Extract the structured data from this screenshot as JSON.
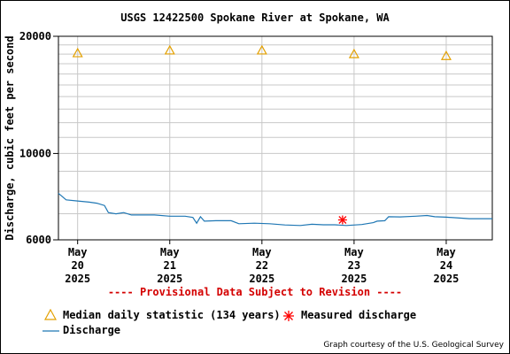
{
  "chart_data": {
    "type": "line",
    "title": "USGS 12422500 Spokane River at Spokane, WA",
    "ylabel": "Discharge, cubic feet per second",
    "xlabel": "",
    "y_scale": "log",
    "ylim": [
      6000,
      20000
    ],
    "y_ticks": [
      {
        "value": 6000,
        "label": "6000"
      },
      {
        "value": 10000,
        "label": "10000"
      },
      {
        "value": 20000,
        "label": "20000"
      }
    ],
    "xlim": [
      "2025-05-19T19:00",
      "2025-05-24T12:00"
    ],
    "x_ticks": [
      {
        "value": "2025-05-20",
        "label": [
          "May",
          "20",
          "2025"
        ]
      },
      {
        "value": "2025-05-21",
        "label": [
          "May",
          "21",
          "2025"
        ]
      },
      {
        "value": "2025-05-22",
        "label": [
          "May",
          "22",
          "2025"
        ]
      },
      {
        "value": "2025-05-23",
        "label": [
          "May",
          "23",
          "2025"
        ]
      },
      {
        "value": "2025-05-24",
        "label": [
          "May",
          "24",
          "2025"
        ]
      }
    ],
    "grid": true,
    "series": [
      {
        "name": "Discharge",
        "color": "#1f77b4",
        "style": "line",
        "points": [
          [
            "2025-05-19T19:00",
            7900
          ],
          [
            "2025-05-19T21:00",
            7600
          ],
          [
            "2025-05-20T00:00",
            7550
          ],
          [
            "2025-05-20T03:00",
            7500
          ],
          [
            "2025-05-20T05:00",
            7450
          ],
          [
            "2025-05-20T07:00",
            7350
          ],
          [
            "2025-05-20T08:00",
            7050
          ],
          [
            "2025-05-20T10:00",
            7000
          ],
          [
            "2025-05-20T12:00",
            7050
          ],
          [
            "2025-05-20T14:00",
            6950
          ],
          [
            "2025-05-20T16:00",
            6950
          ],
          [
            "2025-05-20T20:00",
            6950
          ],
          [
            "2025-05-21T00:00",
            6900
          ],
          [
            "2025-05-21T04:00",
            6900
          ],
          [
            "2025-05-21T06:00",
            6850
          ],
          [
            "2025-05-21T07:00",
            6620
          ],
          [
            "2025-05-21T08:00",
            6880
          ],
          [
            "2025-05-21T09:00",
            6700
          ],
          [
            "2025-05-21T12:00",
            6720
          ],
          [
            "2025-05-21T16:00",
            6720
          ],
          [
            "2025-05-21T18:00",
            6600
          ],
          [
            "2025-05-21T22:00",
            6620
          ],
          [
            "2025-05-22T02:00",
            6600
          ],
          [
            "2025-05-22T06:00",
            6550
          ],
          [
            "2025-05-22T10:00",
            6530
          ],
          [
            "2025-05-22T13:00",
            6580
          ],
          [
            "2025-05-22T16:00",
            6560
          ],
          [
            "2025-05-22T19:00",
            6560
          ],
          [
            "2025-05-22T22:00",
            6530
          ],
          [
            "2025-05-23T02:00",
            6570
          ],
          [
            "2025-05-23T05:00",
            6640
          ],
          [
            "2025-05-23T06:00",
            6700
          ],
          [
            "2025-05-23T08:00",
            6720
          ],
          [
            "2025-05-23T09:00",
            6880
          ],
          [
            "2025-05-23T12:00",
            6870
          ],
          [
            "2025-05-23T16:00",
            6900
          ],
          [
            "2025-05-23T19:00",
            6930
          ],
          [
            "2025-05-23T21:00",
            6880
          ],
          [
            "2025-05-24T00:00",
            6860
          ],
          [
            "2025-05-24T04:00",
            6820
          ],
          [
            "2025-05-24T06:00",
            6800
          ],
          [
            "2025-05-24T09:00",
            6800
          ],
          [
            "2025-05-24T12:00",
            6800
          ]
        ]
      },
      {
        "name": "Median daily statistic (134 years)",
        "color": "#e3a000",
        "style": "triangle",
        "points": [
          [
            "2025-05-20T00:00",
            18100
          ],
          [
            "2025-05-21T00:00",
            18400
          ],
          [
            "2025-05-22T00:00",
            18400
          ],
          [
            "2025-05-23T00:00",
            18000
          ],
          [
            "2025-05-24T00:00",
            17800
          ]
        ]
      },
      {
        "name": "Measured discharge",
        "color": "#ff0000",
        "style": "asterisk",
        "points": [
          [
            "2025-05-22T21:00",
            6750
          ]
        ]
      }
    ],
    "annotation": "---- Provisional Data Subject to Revision ----",
    "credit": "Graph courtesy of the U.S. Geological Survey"
  }
}
